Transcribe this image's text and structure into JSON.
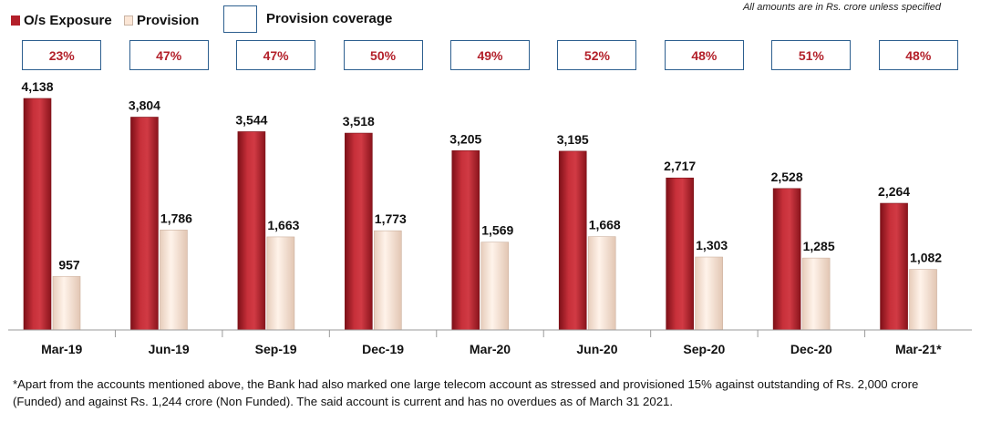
{
  "legend": {
    "exposure_label": "O/s Exposure",
    "provision_label": "Provision",
    "coverage_label": "Provision coverage"
  },
  "note": "All amounts are in Rs. crore unless specified",
  "colors": {
    "exposure": "#b3202a",
    "provision": "#fbe6d6",
    "coverage_border": "#2d5f8f",
    "coverage_text": "#b3202a"
  },
  "chart_data": {
    "type": "bar",
    "categories": [
      "Mar-19",
      "Jun-19",
      "Sep-19",
      "Dec-19",
      "Mar-20",
      "Jun-20",
      "Sep-20",
      "Dec-20",
      "Mar-21*"
    ],
    "series": [
      {
        "name": "O/s Exposure",
        "values": [
          4138,
          3804,
          3544,
          3518,
          3205,
          3195,
          2717,
          2528,
          2264
        ],
        "labels": [
          "4,138",
          "3,804",
          "3,544",
          "3,518",
          "3,205",
          "3,195",
          "2,717",
          "2,528",
          "2,264"
        ]
      },
      {
        "name": "Provision",
        "values": [
          957,
          1786,
          1663,
          1773,
          1569,
          1668,
          1303,
          1285,
          1082
        ],
        "labels": [
          "957",
          "1,786",
          "1,663",
          "1,773",
          "1,569",
          "1,668",
          "1,303",
          "1,285",
          "1,082"
        ]
      }
    ],
    "provision_coverage": [
      "23%",
      "47%",
      "47%",
      "50%",
      "49%",
      "52%",
      "48%",
      "51%",
      "48%"
    ],
    "ylim": [
      0,
      4138
    ],
    "grid": false,
    "legend_position": "top-left"
  },
  "footnote": "*Apart from the accounts mentioned above, the Bank had also marked one large telecom account as stressed and provisioned 15% against outstanding of Rs. 2,000 crore (Funded) and against Rs. 1,244 crore (Non Funded). The said account is current and has no overdues as of March 31 2021."
}
